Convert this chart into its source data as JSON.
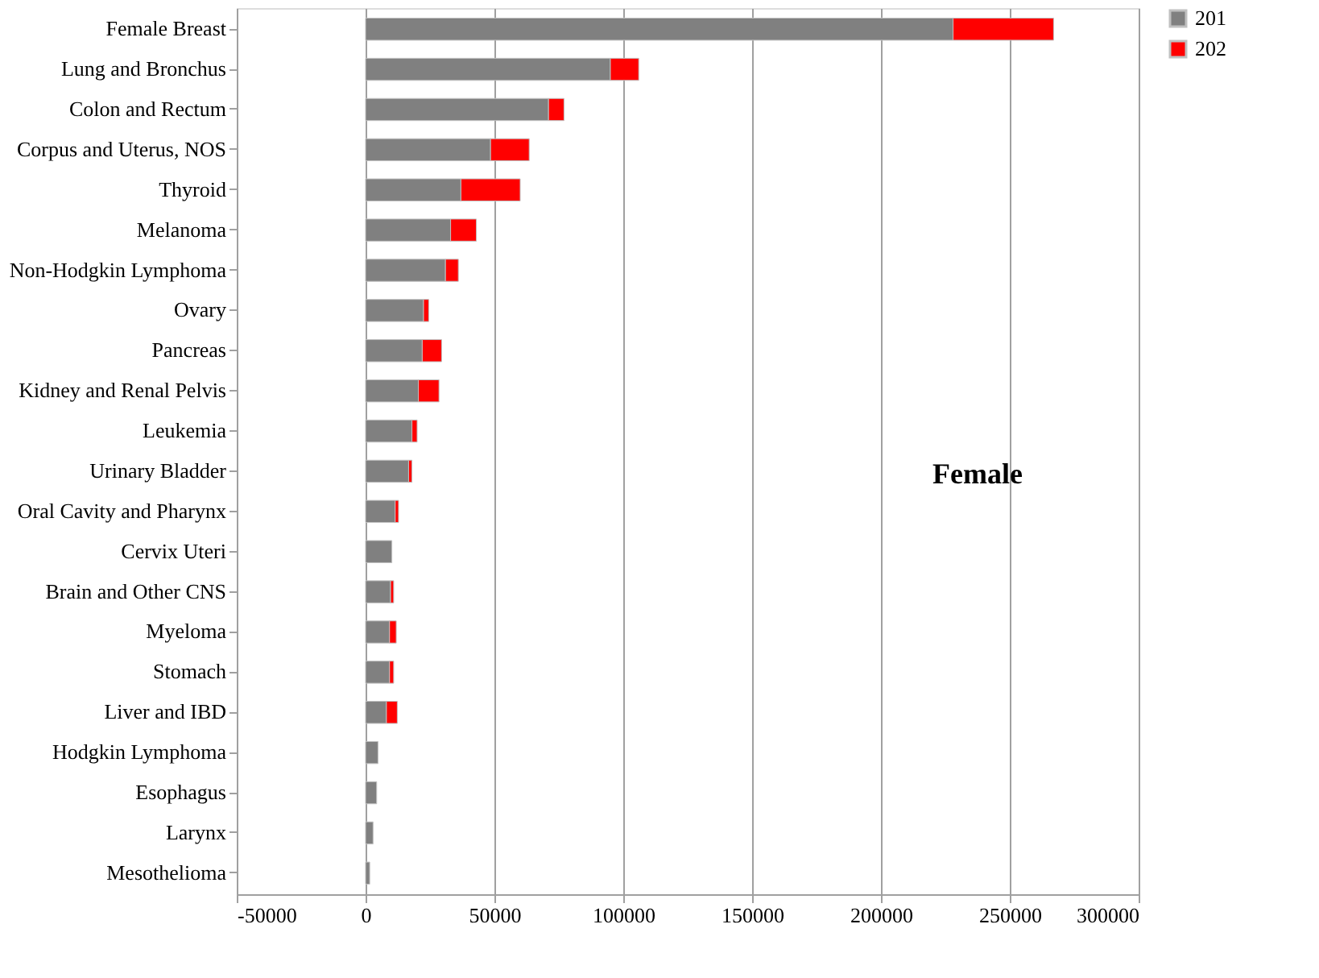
{
  "chart_data": {
    "type": "bar",
    "orientation": "horizontal",
    "stacked": true,
    "title": "Female",
    "categories": [
      "Female Breast",
      "Lung and Bronchus",
      "Colon and Rectum",
      "Corpus and Uterus, NOS",
      "Thyroid",
      "Melanoma",
      "Non-Hodgkin Lymphoma",
      "Ovary",
      "Pancreas",
      "Kidney and Renal Pelvis",
      "Leukemia",
      "Urinary Bladder",
      "Oral Cavity and Pharynx",
      "Cervix Uteri",
      "Brain and Other CNS",
      "Myeloma",
      "Stomach",
      "Liver and IBD",
      "Hodgkin Lymphoma",
      "Esophagus",
      "Larynx",
      "Mesothelioma"
    ],
    "series": [
      {
        "name": "201",
        "color": "#808080",
        "values": [
          228000,
          95000,
          71000,
          48500,
          37000,
          33000,
          31000,
          22500,
          22000,
          20500,
          18000,
          16700,
          11500,
          10200,
          9700,
          9300,
          9300,
          8100,
          4800,
          4300,
          2900,
          1600
        ]
      },
      {
        "name": "202",
        "color": "#ff0000",
        "values": [
          39000,
          11000,
          6000,
          15000,
          23000,
          10000,
          5000,
          2000,
          7500,
          8000,
          2000,
          1300,
          1300,
          null,
          1200,
          2600,
          1600,
          4200,
          null,
          null,
          null,
          null
        ]
      }
    ],
    "xlim": [
      -50000,
      300000
    ],
    "xticks": [
      -50000,
      0,
      50000,
      100000,
      150000,
      200000,
      250000,
      300000
    ],
    "grid": "x",
    "legend": "right"
  }
}
